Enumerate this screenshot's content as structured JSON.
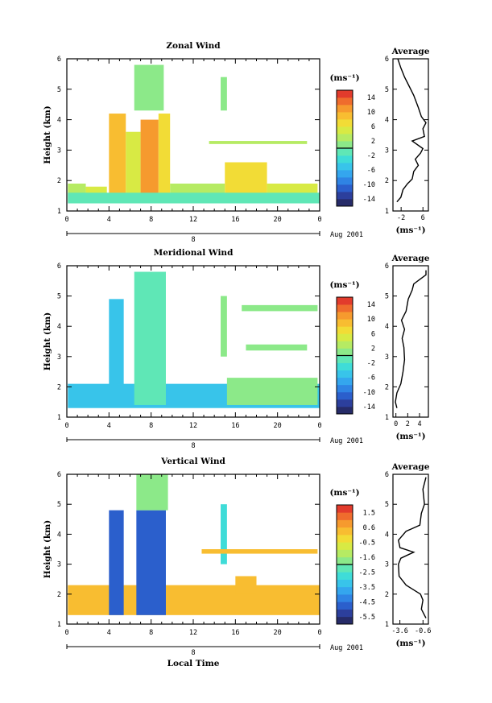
{
  "chart_data": [
    {
      "type": "heatmap",
      "title": "Zonal Wind",
      "ylabel": "Height (km)",
      "xlabel": "",
      "x_ticks": [
        "0",
        "4",
        "8",
        "12",
        "16",
        "20",
        "0"
      ],
      "y_ticks": [
        "1",
        "2",
        "3",
        "4",
        "5",
        "6"
      ],
      "xlim": [
        0,
        24
      ],
      "ylim": [
        1,
        6
      ],
      "date_label": "8",
      "month_label": "Aug 2001",
      "colorbar": {
        "unit": "(ms⁻¹)",
        "min": -15,
        "max": 15,
        "ticks": [
          "14",
          "10",
          "6",
          "2",
          "-2",
          "-6",
          "-10",
          "-14"
        ]
      },
      "series": [
        {
          "values": [
            {
              "x": [
                0.1,
                1.8
              ],
              "y": [
                1.3,
                1.9
              ],
              "v": 2
            },
            {
              "x": [
                1.8,
                3.8
              ],
              "y": [
                1.3,
                1.8
              ],
              "v": 4
            },
            {
              "x": [
                4.0,
                5.6
              ],
              "y": [
                1.5,
                4.2
              ],
              "v": 9
            },
            {
              "x": [
                5.6,
                7.0
              ],
              "y": [
                1.5,
                3.6
              ],
              "v": 5
            },
            {
              "x": [
                7.0,
                8.7
              ],
              "y": [
                1.5,
                4.0
              ],
              "v": 10
            },
            {
              "x": [
                8.7,
                9.8
              ],
              "y": [
                1.5,
                4.2
              ],
              "v": 6
            },
            {
              "x": [
                9.8,
                15.0
              ],
              "y": [
                1.3,
                1.9
              ],
              "v": 3
            },
            {
              "x": [
                15.0,
                19.0
              ],
              "y": [
                1.3,
                2.6
              ],
              "v": 7
            },
            {
              "x": [
                19.0,
                23.8
              ],
              "y": [
                1.3,
                1.9
              ],
              "v": 4
            },
            {
              "x": [
                0.1,
                24.0
              ],
              "y": [
                1.25,
                1.6
              ],
              "v": -1
            },
            {
              "x": [
                6.4,
                9.2
              ],
              "y": [
                4.3,
                5.8
              ],
              "v": 0
            },
            {
              "x": [
                14.6,
                15.2
              ],
              "y": [
                4.3,
                5.4
              ],
              "v": 1
            },
            {
              "x": [
                13.5,
                22.8
              ],
              "y": [
                3.2,
                3.3
              ],
              "v": 3
            }
          ]
        }
      ],
      "profile": {
        "title": "Average",
        "xlabel": "(ms⁻¹)",
        "x_ticks": [
          "-2",
          "6"
        ],
        "xlim": [
          -5,
          8
        ],
        "y_ticks": [
          "1",
          "2",
          "3",
          "4",
          "5",
          "6"
        ]
      }
    },
    {
      "type": "heatmap",
      "title": "Meridional Wind",
      "ylabel": "Height (km)",
      "xlabel": "",
      "x_ticks": [
        "0",
        "4",
        "8",
        "12",
        "16",
        "20",
        "0"
      ],
      "y_ticks": [
        "1",
        "2",
        "3",
        "4",
        "5",
        "6"
      ],
      "xlim": [
        0,
        24
      ],
      "ylim": [
        1,
        6
      ],
      "date_label": "8",
      "month_label": "Aug 2001",
      "colorbar": {
        "unit": "(ms⁻¹)",
        "min": -15,
        "max": 15,
        "ticks": [
          "14",
          "10",
          "6",
          "2",
          "-2",
          "-6",
          "-10",
          "-14"
        ]
      },
      "series": [
        {
          "values": [
            {
              "x": [
                0.1,
                24.0
              ],
              "y": [
                1.3,
                2.1
              ],
              "v": -4
            },
            {
              "x": [
                4.0,
                5.4
              ],
              "y": [
                1.4,
                4.9
              ],
              "v": -4
            },
            {
              "x": [
                6.4,
                9.4
              ],
              "y": [
                1.4,
                5.8
              ],
              "v": -1
            },
            {
              "x": [
                14.6,
                15.2
              ],
              "y": [
                3.0,
                5.0
              ],
              "v": 1
            },
            {
              "x": [
                15.2,
                23.8
              ],
              "y": [
                1.4,
                2.3
              ],
              "v": 0
            },
            {
              "x": [
                17.0,
                22.8
              ],
              "y": [
                3.2,
                3.4
              ],
              "v": 1
            },
            {
              "x": [
                16.6,
                23.8
              ],
              "y": [
                4.5,
                4.7
              ],
              "v": 0
            }
          ]
        }
      ],
      "profile": {
        "title": "Average",
        "xlabel": "(ms⁻¹)",
        "x_ticks": [
          "0",
          "2",
          "4"
        ],
        "xlim": [
          -0.5,
          5.5
        ],
        "y_ticks": [
          "1",
          "2",
          "3",
          "4",
          "5",
          "6"
        ]
      }
    },
    {
      "type": "heatmap",
      "title": "Vertical Wind",
      "ylabel": "Height (km)",
      "xlabel": "Local Time",
      "x_ticks": [
        "0",
        "4",
        "8",
        "12",
        "16",
        "20",
        "0"
      ],
      "y_ticks": [
        "1",
        "2",
        "3",
        "4",
        "5",
        "6"
      ],
      "xlim": [
        0,
        24
      ],
      "ylim": [
        1,
        6
      ],
      "date_label": "8",
      "month_label": "Aug 2001",
      "colorbar": {
        "unit": "(ms⁻¹)",
        "min": -6.1,
        "max": 2.1,
        "ticks": [
          "1.5",
          "0.6",
          "-0.5",
          "-1.6",
          "-2.5",
          "-3.5",
          "-4.5",
          "-5.5"
        ]
      },
      "series": [
        {
          "values": [
            {
              "x": [
                0.1,
                24.0
              ],
              "y": [
                1.3,
                2.3
              ],
              "v": 0.5
            },
            {
              "x": [
                4.0,
                5.4
              ],
              "y": [
                1.3,
                4.8
              ],
              "v": -5.0
            },
            {
              "x": [
                6.6,
                9.4
              ],
              "y": [
                1.3,
                4.8
              ],
              "v": -4.8
            },
            {
              "x": [
                6.6,
                9.6
              ],
              "y": [
                4.8,
                6.0
              ],
              "v": -1.6
            },
            {
              "x": [
                14.6,
                15.2
              ],
              "y": [
                3.0,
                5.0
              ],
              "v": -2.6
            },
            {
              "x": [
                12.8,
                23.8
              ],
              "y": [
                3.35,
                3.5
              ],
              "v": 0.3
            },
            {
              "x": [
                16.0,
                18.0
              ],
              "y": [
                2.0,
                2.6
              ],
              "v": 0.2
            }
          ]
        }
      ],
      "profile": {
        "title": "Average",
        "xlabel": "(ms⁻¹)",
        "x_ticks": [
          "-3.6",
          "-0.6"
        ],
        "xlim": [
          -4.5,
          0.1
        ],
        "y_ticks": [
          "1",
          "2",
          "3",
          "4",
          "5",
          "6"
        ]
      }
    }
  ]
}
